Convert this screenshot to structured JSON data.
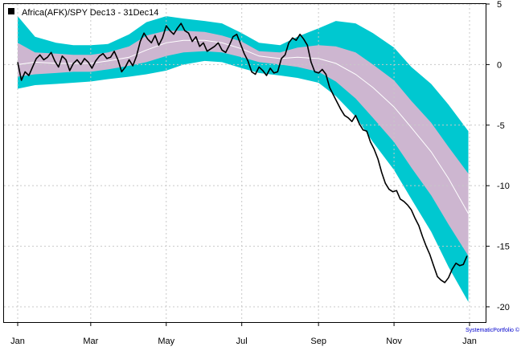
{
  "chart_data": {
    "type": "line",
    "legend": {
      "label": "Africa(AFK)/SPY Dec13 - 31Dec14",
      "placement": "top-left"
    },
    "credit": "SystematicPortfolio ©",
    "x_axis": {
      "range": [
        "2014-01-01",
        "2015-01-01"
      ],
      "tick_labels": [
        "Jan",
        "Mar",
        "May",
        "Jul",
        "Sep",
        "Nov",
        "Jan"
      ],
      "tick_dates": [
        "2014-01-01",
        "2014-03-01",
        "2014-05-01",
        "2014-07-01",
        "2014-09-01",
        "2014-11-01",
        "2015-01-01"
      ]
    },
    "y_axis": {
      "position": "right",
      "range": [
        -20.5,
        5
      ],
      "ticks": [
        5,
        0,
        -5,
        -10,
        -15,
        -20
      ]
    },
    "grid": true,
    "colors": {
      "outer_band": "#00c8d0",
      "inner_band": "#cdb6d0",
      "mean_line": "#ffffff",
      "price_line": "#000000",
      "grid": "#c8c8c8"
    },
    "series": [
      {
        "name": "Africa(AFK)/SPY Dec13 - 31Dec14",
        "x": [
          "2014-01-01",
          "2014-01-04",
          "2014-01-07",
          "2014-01-10",
          "2014-01-13",
          "2014-01-16",
          "2014-01-19",
          "2014-01-22",
          "2014-01-25",
          "2014-01-28",
          "2014-01-31",
          "2014-02-03",
          "2014-02-06",
          "2014-02-09",
          "2014-02-12",
          "2014-02-15",
          "2014-02-18",
          "2014-02-21",
          "2014-02-24",
          "2014-02-27",
          "2014-03-02",
          "2014-03-05",
          "2014-03-08",
          "2014-03-11",
          "2014-03-14",
          "2014-03-17",
          "2014-03-20",
          "2014-03-23",
          "2014-03-26",
          "2014-03-29",
          "2014-04-01",
          "2014-04-04",
          "2014-04-07",
          "2014-04-10",
          "2014-04-13",
          "2014-04-16",
          "2014-04-19",
          "2014-04-22",
          "2014-04-25",
          "2014-04-28",
          "2014-05-01",
          "2014-05-04",
          "2014-05-07",
          "2014-05-10",
          "2014-05-13",
          "2014-05-16",
          "2014-05-19",
          "2014-05-22",
          "2014-05-25",
          "2014-05-28",
          "2014-05-31",
          "2014-06-03",
          "2014-06-06",
          "2014-06-09",
          "2014-06-12",
          "2014-06-15",
          "2014-06-18",
          "2014-06-21",
          "2014-06-24",
          "2014-06-27",
          "2014-06-30",
          "2014-07-03",
          "2014-07-06",
          "2014-07-09",
          "2014-07-12",
          "2014-07-15",
          "2014-07-18",
          "2014-07-21",
          "2014-07-24",
          "2014-07-27",
          "2014-07-30",
          "2014-08-02",
          "2014-08-05",
          "2014-08-08",
          "2014-08-11",
          "2014-08-14",
          "2014-08-17",
          "2014-08-20",
          "2014-08-23",
          "2014-08-26",
          "2014-08-29",
          "2014-09-01",
          "2014-09-04",
          "2014-09-07",
          "2014-09-10",
          "2014-09-13",
          "2014-09-16",
          "2014-09-19",
          "2014-09-22",
          "2014-09-25",
          "2014-09-28",
          "2014-10-01",
          "2014-10-04",
          "2014-10-07",
          "2014-10-10",
          "2014-10-13",
          "2014-10-16",
          "2014-10-19",
          "2014-10-22",
          "2014-10-25",
          "2014-10-28",
          "2014-10-31",
          "2014-11-03",
          "2014-11-06",
          "2014-11-09",
          "2014-11-12",
          "2014-11-15",
          "2014-11-18",
          "2014-11-21",
          "2014-11-24",
          "2014-11-27",
          "2014-11-30",
          "2014-12-03",
          "2014-12-06",
          "2014-12-09",
          "2014-12-12",
          "2014-12-15",
          "2014-12-18",
          "2014-12-21",
          "2014-12-24",
          "2014-12-27",
          "2014-12-30"
        ],
        "values": [
          0.2,
          -1.3,
          -0.6,
          -0.9,
          -0.2,
          0.5,
          0.8,
          0.4,
          0.6,
          1.0,
          0.3,
          -0.2,
          0.7,
          0.4,
          -0.5,
          0.1,
          0.4,
          0.0,
          0.5,
          0.2,
          -0.3,
          0.3,
          0.7,
          0.9,
          0.5,
          0.6,
          1.1,
          0.4,
          -0.6,
          -0.2,
          0.4,
          -0.1,
          0.7,
          1.9,
          2.6,
          2.1,
          1.8,
          2.4,
          1.6,
          2.2,
          3.2,
          2.8,
          2.5,
          3.0,
          3.4,
          2.8,
          2.6,
          1.9,
          2.3,
          1.5,
          1.8,
          1.1,
          1.3,
          1.5,
          1.8,
          1.2,
          1.0,
          1.6,
          2.3,
          2.5,
          1.7,
          0.9,
          0.3,
          -0.6,
          -0.8,
          -0.2,
          -0.5,
          -0.9,
          -0.3,
          -0.7,
          -0.6,
          0.5,
          0.8,
          1.8,
          2.2,
          2.0,
          2.5,
          2.1,
          1.6,
          0.2,
          -0.6,
          -0.7,
          -0.4,
          -0.8,
          -1.9,
          -2.5,
          -3.1,
          -3.7,
          -4.2,
          -4.4,
          -4.7,
          -4.2,
          -4.9,
          -5.4,
          -5.5,
          -6.4,
          -7.0,
          -7.8,
          -8.9,
          -9.8,
          -10.3,
          -10.5,
          -10.4,
          -11.1,
          -11.3,
          -11.6,
          -12.0,
          -12.7,
          -13.3,
          -14.2,
          -15.0,
          -15.7,
          -16.6,
          -17.5,
          -17.8,
          -18.0,
          -17.6,
          -16.9,
          -16.4,
          -16.6,
          -16.5,
          -15.8
        ]
      }
    ],
    "bands": {
      "x": [
        "2014-01-01",
        "2014-01-15",
        "2014-02-01",
        "2014-02-15",
        "2014-03-01",
        "2014-03-15",
        "2014-04-01",
        "2014-04-15",
        "2014-05-01",
        "2014-05-15",
        "2014-06-01",
        "2014-06-15",
        "2014-07-01",
        "2014-07-15",
        "2014-08-01",
        "2014-08-15",
        "2014-09-01",
        "2014-09-15",
        "2014-10-01",
        "2014-10-15",
        "2014-11-01",
        "2014-11-15",
        "2014-12-01",
        "2014-12-15",
        "2014-12-31"
      ],
      "outer_upper": [
        4.0,
        2.3,
        1.8,
        1.6,
        1.6,
        1.7,
        2.5,
        3.5,
        4.0,
        3.8,
        3.6,
        3.4,
        2.6,
        1.8,
        1.6,
        2.3,
        3.0,
        3.6,
        3.4,
        2.6,
        1.4,
        -0.2,
        -1.6,
        -3.3,
        -5.5
      ],
      "inner_upper": [
        1.8,
        1.0,
        0.9,
        0.8,
        0.8,
        1.0,
        1.5,
        2.4,
        2.8,
        2.8,
        2.7,
        2.4,
        1.9,
        1.1,
        1.0,
        1.4,
        1.6,
        1.5,
        1.0,
        0.0,
        -1.3,
        -3.0,
        -4.8,
        -6.8,
        -9.0
      ],
      "mean": [
        0.0,
        0.2,
        0.1,
        0.1,
        0.1,
        0.3,
        0.6,
        1.2,
        1.8,
        2.0,
        2.0,
        1.8,
        1.3,
        0.7,
        0.5,
        0.6,
        0.5,
        0.1,
        -0.8,
        -1.9,
        -3.5,
        -5.2,
        -7.2,
        -9.4,
        -12.3
      ],
      "inner_lower": [
        -1.0,
        -0.8,
        -0.7,
        -0.6,
        -0.6,
        -0.4,
        -0.1,
        0.2,
        0.7,
        1.0,
        1.1,
        1.0,
        0.6,
        0.2,
        0.0,
        -0.2,
        -0.6,
        -1.4,
        -2.8,
        -4.4,
        -6.4,
        -8.5,
        -10.8,
        -13.2,
        -15.8
      ],
      "outer_lower": [
        -2.0,
        -1.7,
        -1.6,
        -1.5,
        -1.4,
        -1.2,
        -1.0,
        -0.8,
        -0.5,
        0.0,
        0.3,
        0.2,
        -0.3,
        -0.7,
        -0.9,
        -1.1,
        -1.5,
        -2.6,
        -4.3,
        -6.4,
        -8.7,
        -11.1,
        -13.8,
        -16.7,
        -19.6
      ]
    }
  }
}
